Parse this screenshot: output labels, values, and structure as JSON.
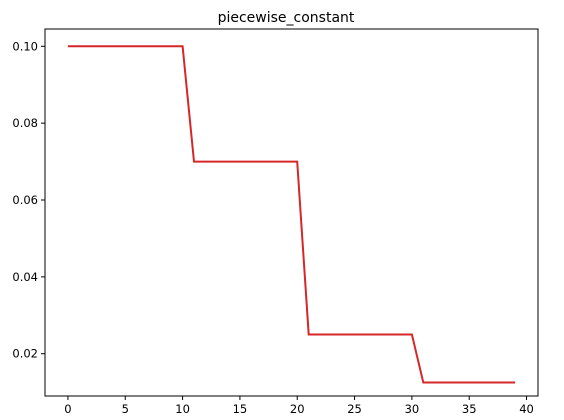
{
  "chart_data": {
    "type": "line",
    "title": "piecewise_constant",
    "xlabel": "",
    "ylabel": "",
    "xlim": [
      -2,
      41
    ],
    "ylim": [
      0.009,
      0.1045
    ],
    "xticks": [
      0,
      5,
      10,
      15,
      20,
      25,
      30,
      35,
      40
    ],
    "yticks": [
      0.02,
      0.04,
      0.06,
      0.08,
      0.1
    ],
    "xtick_labels": [
      "0",
      "5",
      "10",
      "15",
      "20",
      "25",
      "30",
      "35",
      "40"
    ],
    "ytick_labels": [
      "0.02",
      "0.04",
      "0.06",
      "0.08",
      "0.10"
    ],
    "grid": false,
    "series": [
      {
        "color": "#d62728",
        "x": [
          0,
          10,
          11,
          20,
          21,
          30,
          31,
          39
        ],
        "y": [
          0.1,
          0.1,
          0.07,
          0.07,
          0.025,
          0.025,
          0.0125,
          0.0125
        ]
      }
    ]
  }
}
